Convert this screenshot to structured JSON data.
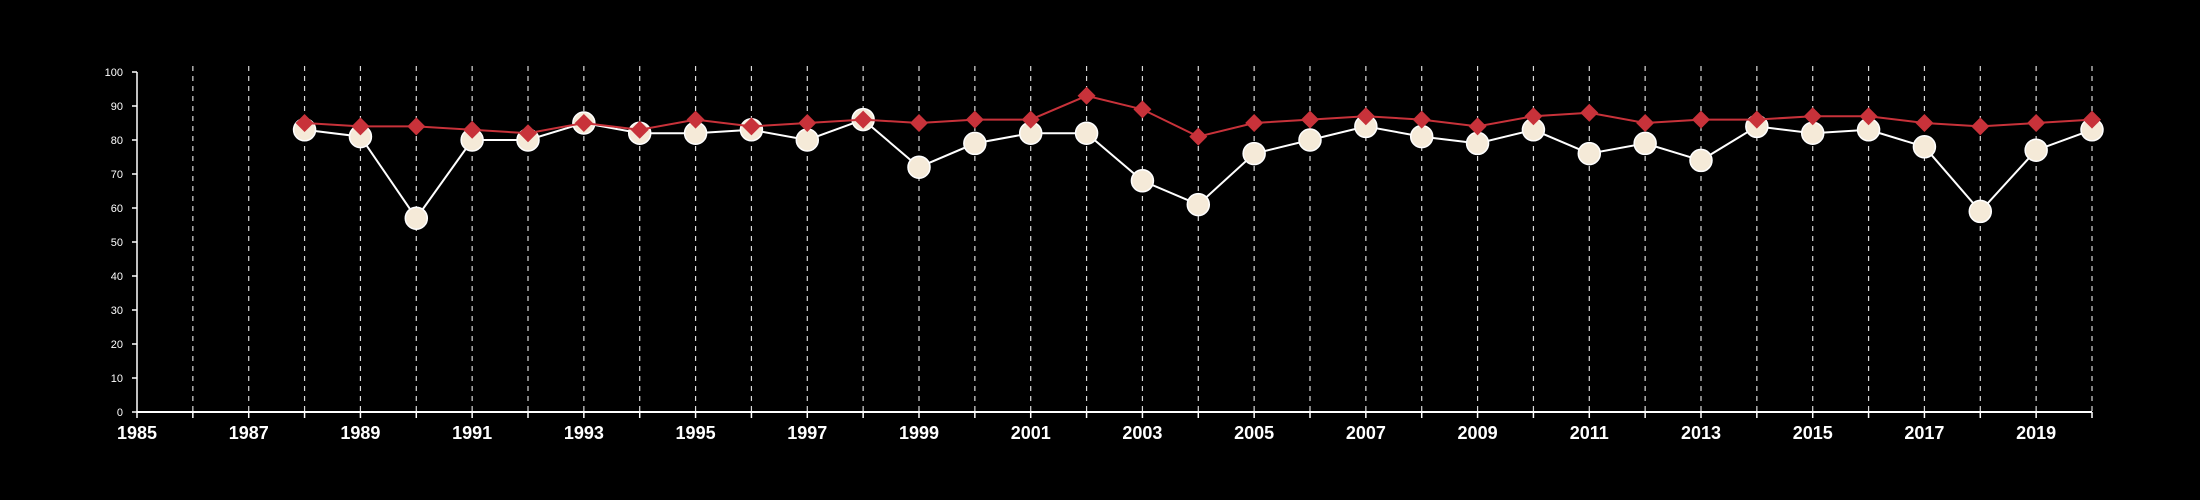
{
  "chart_data": {
    "type": "line",
    "title": "",
    "xlabel": "",
    "ylabel": "",
    "xlim": [
      1985,
      2020
    ],
    "ylim": [
      0,
      100
    ],
    "y_ticks": [
      "0",
      "10",
      "20",
      "30",
      "40",
      "50",
      "60",
      "70",
      "80",
      "90",
      "100"
    ],
    "x_ticks": [
      "1985",
      "1987",
      "1989",
      "1991",
      "1993",
      "1995",
      "1997",
      "1999",
      "2001",
      "2003",
      "2005",
      "2007",
      "2009",
      "2011",
      "2013",
      "2015",
      "2017",
      "2019"
    ],
    "grid": "vertical dashed lines at each year",
    "legend": "none",
    "x": [
      1988,
      1989,
      1990,
      1991,
      1992,
      1993,
      1994,
      1995,
      1996,
      1997,
      1998,
      1999,
      2000,
      2001,
      2002,
      2003,
      2004,
      2005,
      2006,
      2007,
      2008,
      2009,
      2010,
      2011,
      2012,
      2013,
      2014,
      2015,
      2016,
      2017,
      2018,
      2019,
      2020
    ],
    "series": [
      {
        "marker": "diamond",
        "color": "#c8323a",
        "values": [
          85,
          84,
          84,
          83,
          82,
          85,
          83,
          86,
          84,
          85,
          86,
          85,
          86,
          86,
          93,
          89,
          81,
          85,
          86,
          87,
          86,
          84,
          87,
          88,
          85,
          86,
          86,
          87,
          87,
          85,
          84,
          85,
          86
        ]
      },
      {
        "marker": "circle",
        "color": "#ffffff",
        "fill": "#f5ead8",
        "values": [
          83,
          81,
          57,
          80,
          80,
          85,
          82,
          82,
          83,
          80,
          86,
          72,
          79,
          82,
          82,
          68,
          61,
          76,
          80,
          84,
          81,
          79,
          83,
          76,
          79,
          74,
          84,
          82,
          83,
          78,
          59,
          77,
          83
        ]
      }
    ]
  }
}
